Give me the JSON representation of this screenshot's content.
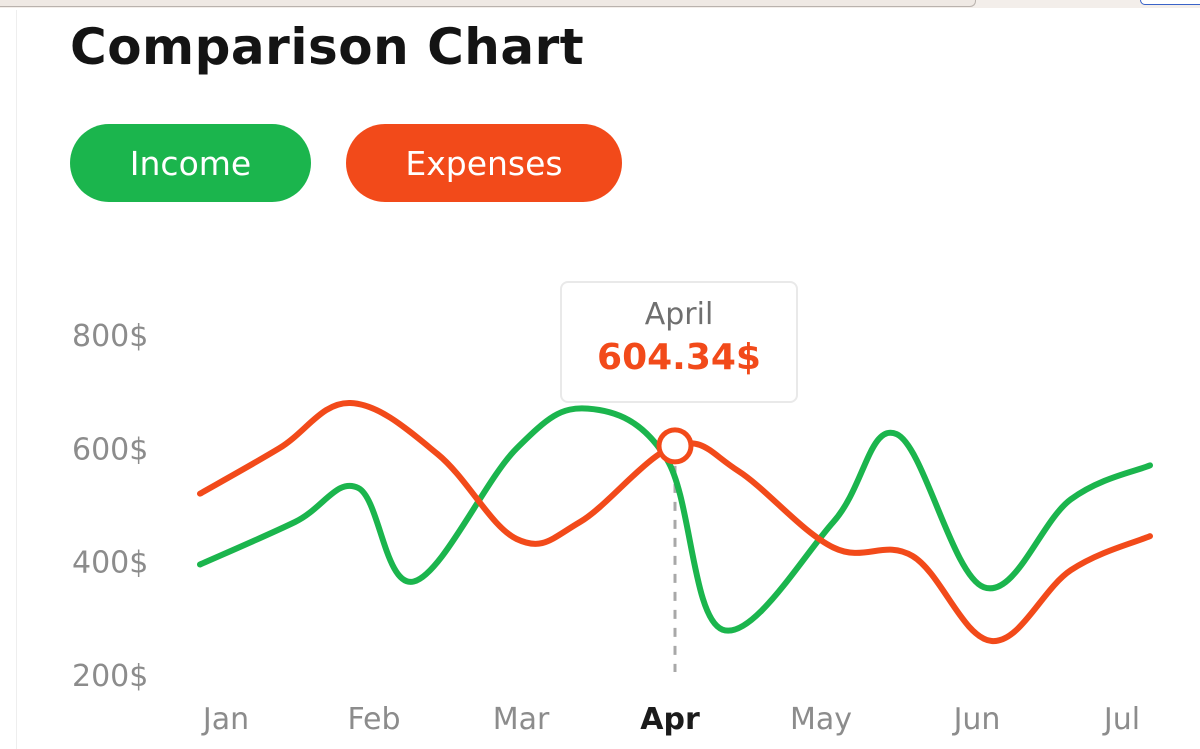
{
  "title": "Comparison Chart",
  "colors": {
    "income": "#1bb54d",
    "expenses": "#f24a1a",
    "grid_text": "#8c8c8c"
  },
  "legend": {
    "income_label": "Income",
    "expenses_label": "Expenses"
  },
  "tooltip": {
    "month": "April",
    "value": "604.34$"
  },
  "chart_data": {
    "type": "line",
    "title": "Comparison Chart",
    "xlabel": "",
    "ylabel": "",
    "categories": [
      "Jan",
      "Feb",
      "Mar",
      "Apr",
      "May",
      "Jun",
      "Jul"
    ],
    "active_category": "Apr",
    "y_ticks": [
      "800$",
      "600$",
      "400$",
      "200$"
    ],
    "ylim": [
      200,
      800
    ],
    "grid": false,
    "legend_position": "top-left",
    "series": [
      {
        "name": "Income",
        "x": [
          0,
          0.6,
          1.0,
          1.35,
          2.0,
          2.45,
          2.95,
          3.3,
          4.0,
          4.4,
          4.95,
          5.5,
          6.0
        ],
        "values": [
          395,
          470,
          530,
          365,
          600,
          670,
          580,
          280,
          470,
          625,
          355,
          510,
          570
        ]
      },
      {
        "name": "Expenses",
        "x": [
          0,
          0.5,
          0.95,
          1.5,
          2.0,
          2.4,
          3.0,
          3.4,
          4.0,
          4.5,
          5.0,
          5.5,
          6.0
        ],
        "values": [
          520,
          600,
          680,
          590,
          440,
          470,
          604.34,
          560,
          425,
          410,
          260,
          385,
          445
        ]
      }
    ],
    "highlight": {
      "series": "Expenses",
      "category": "Apr",
      "value": 604.34
    }
  }
}
